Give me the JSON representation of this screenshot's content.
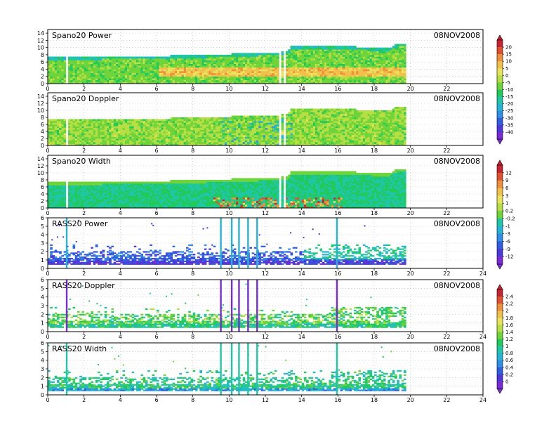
{
  "date_label": "08NOV2008",
  "chart_data": [
    {
      "type": "heatmap",
      "title": "Spano20 Power",
      "date": "08NOV2008",
      "xlim": [
        0,
        24
      ],
      "ylim": [
        0,
        15
      ],
      "xticks": [
        0,
        2,
        4,
        6,
        8,
        10,
        12,
        14,
        16,
        18,
        20,
        22
      ],
      "yticks": [
        0,
        2,
        4,
        6,
        8,
        10,
        12,
        14
      ],
      "data_extent_hours": [
        0,
        19.7
      ],
      "top_height_profile": [
        [
          0,
          7.2
        ],
        [
          6,
          7.4
        ],
        [
          10,
          8.0
        ],
        [
          13.2,
          8.6
        ],
        [
          13.3,
          10
        ],
        [
          16,
          10.2
        ],
        [
          18.8,
          9.6
        ],
        [
          19.2,
          11
        ],
        [
          19.7,
          11
        ]
      ],
      "colorbar": "power"
    },
    {
      "type": "heatmap",
      "title": "Spano20 Doppler",
      "date": "08NOV2008",
      "xlim": [
        0,
        24
      ],
      "ylim": [
        0,
        15
      ],
      "xticks": [
        0,
        2,
        4,
        6,
        8,
        10,
        12,
        14,
        16,
        18,
        20,
        22
      ],
      "yticks": [
        0,
        2,
        4,
        6,
        8,
        10,
        12,
        14
      ],
      "data_extent_hours": [
        0,
        19.7
      ],
      "top_height_profile": [
        [
          0,
          7.2
        ],
        [
          6,
          7.4
        ],
        [
          10,
          8.0
        ],
        [
          13.2,
          8.6
        ],
        [
          13.3,
          10
        ],
        [
          16,
          10.2
        ],
        [
          18.8,
          9.6
        ],
        [
          19.2,
          11
        ],
        [
          19.7,
          11
        ]
      ],
      "colorbar": "power"
    },
    {
      "type": "heatmap",
      "title": "Spano20 Width",
      "date": "08NOV2008",
      "xlim": [
        0,
        24
      ],
      "ylim": [
        0,
        15
      ],
      "xticks": [
        0,
        2,
        4,
        6,
        8,
        10,
        12,
        14,
        16,
        18,
        20,
        22
      ],
      "yticks": [
        0,
        2,
        4,
        6,
        8,
        10,
        12,
        14
      ],
      "data_extent_hours": [
        0,
        19.7
      ],
      "top_height_profile": [
        [
          0,
          7.2
        ],
        [
          6,
          7.4
        ],
        [
          10,
          8.0
        ],
        [
          13.2,
          8.6
        ],
        [
          13.3,
          10
        ],
        [
          16,
          10.2
        ],
        [
          18.8,
          9.6
        ],
        [
          19.2,
          11
        ],
        [
          19.7,
          11
        ]
      ],
      "colorbar": "width"
    },
    {
      "type": "heatmap",
      "title": "RASS20 Power",
      "date": "08NOV2008",
      "xlim": [
        0,
        24
      ],
      "ylim": [
        0,
        6
      ],
      "xticks": [
        0,
        2,
        4,
        6,
        8,
        10,
        12,
        14,
        16,
        18,
        20,
        22,
        24
      ],
      "yticks": [
        0,
        1,
        2,
        3,
        4,
        5,
        6
      ],
      "data_extent_hours": [
        0,
        19.7
      ],
      "spike_hours": [
        1.0,
        9.5,
        10.1,
        10.5,
        11.0,
        11.5,
        15.9
      ],
      "colorbar": "width"
    },
    {
      "type": "heatmap",
      "title": "RASS20 Doppler",
      "date": "08NOV2008",
      "xlim": [
        0,
        24
      ],
      "ylim": [
        0,
        6
      ],
      "xticks": [
        0,
        2,
        4,
        6,
        8,
        10,
        12,
        14,
        16,
        18,
        20,
        22,
        24
      ],
      "yticks": [
        0,
        1,
        2,
        3,
        4,
        5,
        6
      ],
      "data_extent_hours": [
        0,
        19.7
      ],
      "spike_hours": [
        1.0,
        9.5,
        10.1,
        10.5,
        11.0,
        11.5,
        15.9
      ],
      "colorbar": "rass"
    },
    {
      "type": "heatmap",
      "title": "RASS20 Width",
      "date": "08NOV2008",
      "xlim": [
        0,
        24
      ],
      "ylim": [
        0,
        6
      ],
      "xticks": [
        0,
        2,
        4,
        6,
        8,
        10,
        12,
        14,
        16,
        18,
        20,
        22,
        24
      ],
      "yticks": [
        0,
        1,
        2,
        3,
        4,
        5,
        6
      ],
      "data_extent_hours": [
        0,
        19.7
      ],
      "spike_hours": [
        1.0,
        9.5,
        10.1,
        10.5,
        11.0,
        11.5,
        15.9
      ],
      "colorbar": "rass"
    }
  ],
  "colorbars": {
    "power": {
      "labels": [
        "20",
        "15",
        "10",
        "5",
        "0",
        "-5",
        "-10",
        "-15",
        "-20",
        "-25",
        "-30",
        "-35",
        "-40"
      ]
    },
    "width": {
      "labels": [
        "12",
        "9",
        "6",
        "3",
        "1",
        "0.2",
        "-0.2",
        "-1",
        "-3",
        "-6",
        "-9",
        "-12"
      ]
    },
    "rass": {
      "labels": [
        "2.4",
        "2.2",
        "2",
        "1.8",
        "1.6",
        "1.4",
        "1.2",
        "1",
        "0.8",
        "0.6",
        "0.4",
        "0.2",
        "0"
      ]
    }
  },
  "palette": [
    "#7a2bd6",
    "#4b3ad9",
    "#2f5fe0",
    "#2f8fe6",
    "#25b3d6",
    "#1fc7a6",
    "#22c95b",
    "#6fd43a",
    "#b7df43",
    "#e8e35a",
    "#f0c04a",
    "#ee8f3b",
    "#e0502f",
    "#c72433"
  ]
}
